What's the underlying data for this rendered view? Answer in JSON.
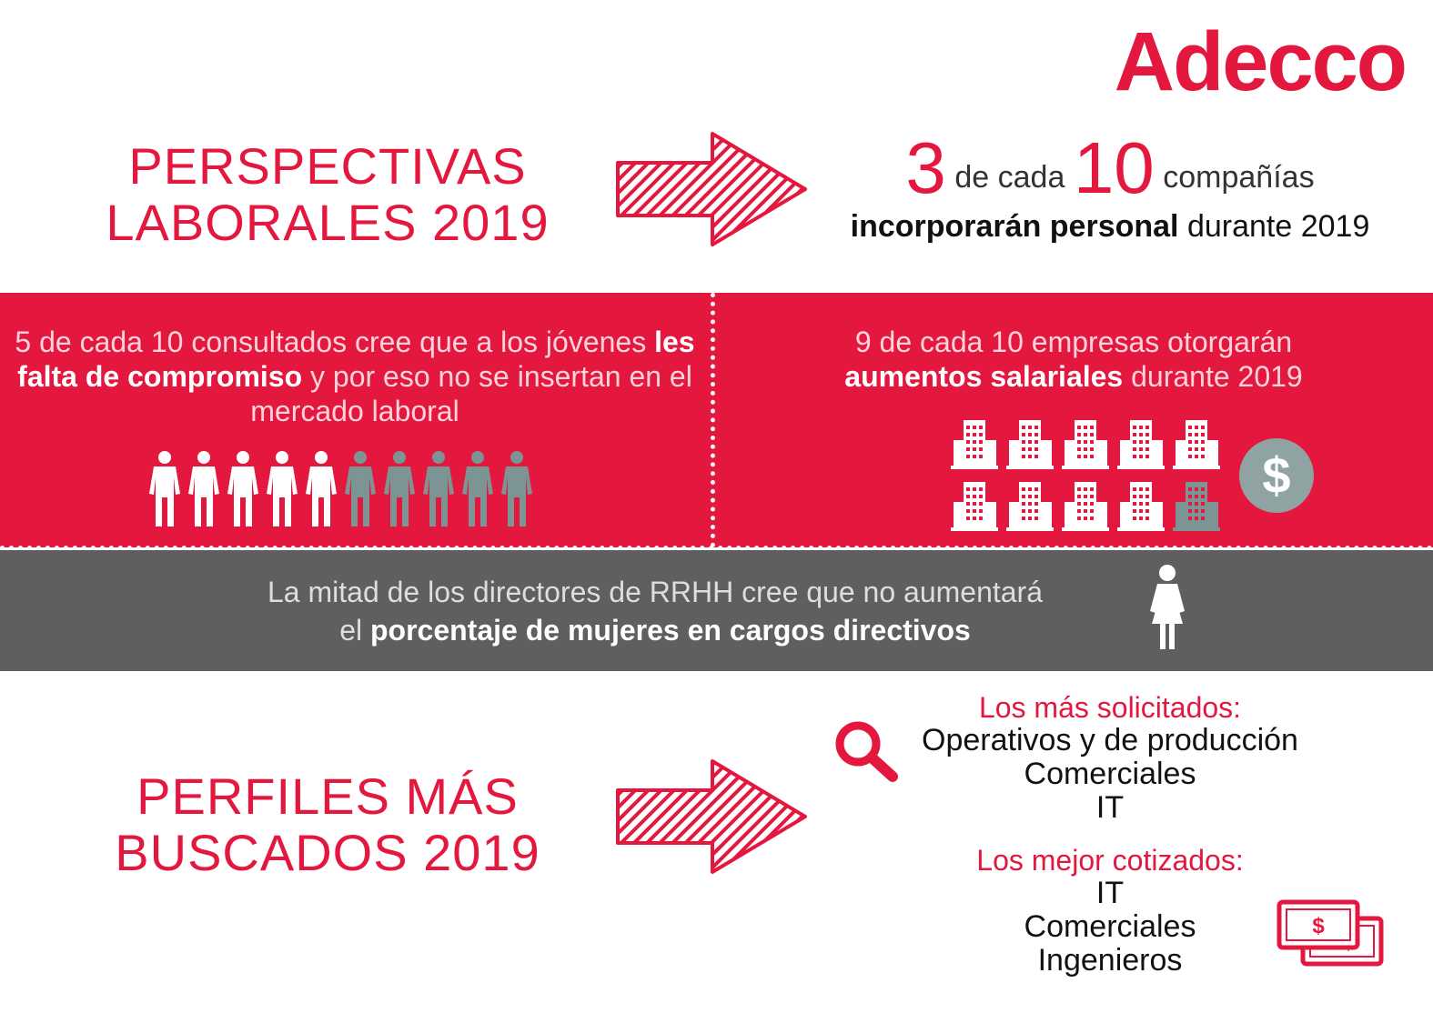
{
  "brand": {
    "logo_text": "Adecco",
    "accent_color": "#e4173e",
    "gray_color": "#5f5f5f",
    "icon_gray": "#8fa3a3"
  },
  "section1": {
    "title": "PERSPECTIVAS\nLABORALES 2019"
  },
  "headline": {
    "num1": "3",
    "text1": "de cada",
    "num2": "10",
    "text2": "compañías",
    "bold": "incorporarán personal",
    "rest": "durante 2019"
  },
  "red_left": {
    "pre": "5 de cada 10 consultados cree que a los jóvenes",
    "bold": "les falta de compromiso",
    "post": "y por eso no se insertan en el mercado laboral",
    "people_total": 10,
    "people_highlighted": 5
  },
  "red_right": {
    "pre": "9 de cada 10 empresas otorgarán",
    "bold": "aumentos salariales",
    "post": "durante 2019",
    "buildings_total": 10,
    "buildings_highlighted": 9,
    "currency_symbol": "$"
  },
  "gray_band": {
    "line1": "La mitad de los directores de RRHH cree que no aumentará",
    "pre": "el",
    "bold": "porcentaje de mujeres en cargos directivos"
  },
  "section2": {
    "title": "PERFILES MÁS\nBUSCADOS 2019"
  },
  "solicitados": {
    "heading": "Los más solicitados:",
    "items": [
      "Operativos y de producción",
      "Comerciales",
      "IT"
    ]
  },
  "cotizados": {
    "heading": "Los mejor cotizados:",
    "items": [
      "IT",
      "Comerciales",
      "Ingenieros"
    ]
  },
  "icons": [
    "search-icon",
    "person-icon",
    "building-icon",
    "dollar-icon",
    "woman-icon",
    "money-bill-icon",
    "arrow-right-icon"
  ]
}
